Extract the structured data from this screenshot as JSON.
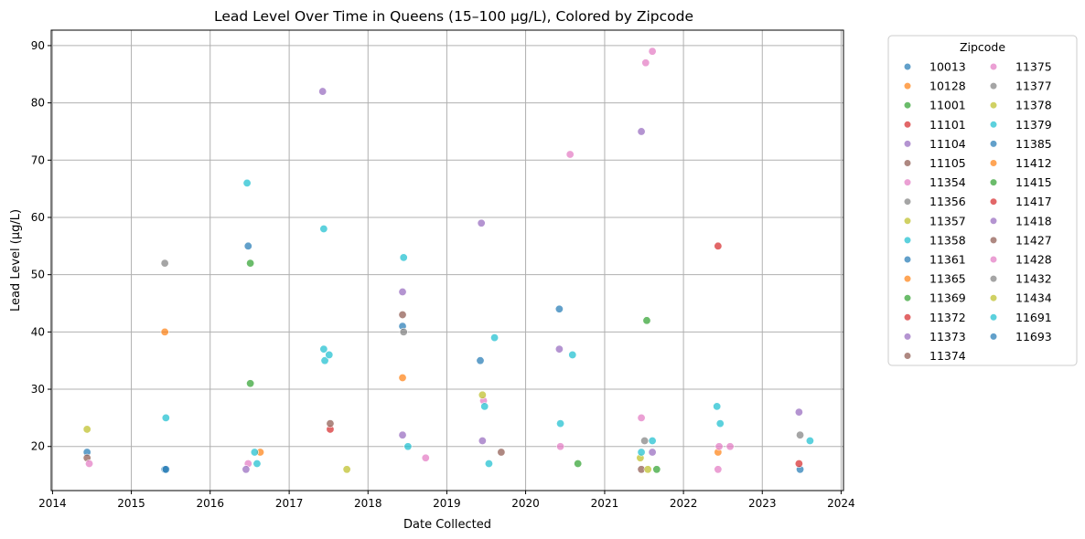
{
  "chart_data": {
    "type": "scatter",
    "title": "Lead Level Over Time in Queens (15–100 µg/L), Colored by Zipcode",
    "xlabel": "Date Collected",
    "ylabel": "Lead Level (µg/L)",
    "xlim": [
      "2013-12-26",
      "2024-01-12"
    ],
    "ylim": [
      12.3,
      92.7
    ],
    "xticks": [
      "2014",
      "2015",
      "2016",
      "2017",
      "2018",
      "2019",
      "2020",
      "2021",
      "2022",
      "2023",
      "2024"
    ],
    "yticks": [
      20,
      30,
      40,
      50,
      60,
      70,
      80,
      90
    ],
    "grid": true,
    "legend": {
      "title": "Zipcode",
      "placement": "outside-right",
      "columns": 2
    },
    "series": [
      {
        "name": "10013",
        "color": "#1f77b4",
        "points": [
          [
            "2014-06-10",
            19
          ],
          [
            "2015-06-05",
            16
          ],
          [
            "2016-06-25",
            55
          ],
          [
            "2018-06-10",
            41
          ],
          [
            "2019-06-05",
            35
          ],
          [
            "2020-06-05",
            44
          ],
          [
            "2023-06-25",
            16
          ]
        ]
      },
      {
        "name": "10128",
        "color": "#ff7f0e",
        "points": [
          [
            "2015-06-05",
            40
          ],
          [
            "2016-08-20",
            19
          ],
          [
            "2018-06-10",
            32
          ],
          [
            "2022-06-10",
            19
          ]
        ]
      },
      {
        "name": "11001",
        "color": "#2ca02c",
        "points": [
          [
            "2016-07-05",
            52
          ],
          [
            "2016-07-05",
            31
          ],
          [
            "2020-08-30",
            17
          ],
          [
            "2021-07-15",
            42
          ],
          [
            "2021-08-30",
            16
          ]
        ]
      },
      {
        "name": "11101",
        "color": "#d62728",
        "points": [
          [
            "2017-07-10",
            23
          ],
          [
            "2022-06-10",
            55
          ],
          [
            "2023-06-20",
            17
          ]
        ]
      },
      {
        "name": "11104",
        "color": "#9467bd",
        "points": [
          [
            "2017-06-05",
            82
          ],
          [
            "2018-06-10",
            47
          ],
          [
            "2018-06-10",
            22
          ],
          [
            "2019-06-10",
            59
          ],
          [
            "2019-06-15",
            21
          ],
          [
            "2020-06-05",
            37
          ],
          [
            "2021-06-20",
            75
          ],
          [
            "2021-08-10",
            19
          ],
          [
            "2023-06-20",
            26
          ]
        ]
      },
      {
        "name": "11105",
        "color": "#8c564b",
        "points": [
          [
            "2014-06-10",
            18
          ],
          [
            "2017-07-10",
            24
          ],
          [
            "2018-06-10",
            43
          ],
          [
            "2019-09-10",
            19
          ],
          [
            "2021-06-20",
            16
          ]
        ]
      },
      {
        "name": "11354",
        "color": "#e377c2",
        "points": [
          [
            "2014-06-20",
            17
          ],
          [
            "2016-06-25",
            17
          ],
          [
            "2019-06-20",
            28
          ],
          [
            "2020-06-10",
            20
          ],
          [
            "2020-07-25",
            71
          ],
          [
            "2021-06-20",
            25
          ],
          [
            "2021-07-10",
            87
          ],
          [
            "2021-08-10",
            89
          ],
          [
            "2022-06-10",
            16
          ]
        ]
      },
      {
        "name": "11356",
        "color": "#7f7f7f",
        "points": [
          [
            "2015-06-05",
            52
          ],
          [
            "2018-06-15",
            40
          ],
          [
            "2021-07-05",
            21
          ],
          [
            "2023-06-25",
            22
          ]
        ]
      },
      {
        "name": "11357",
        "color": "#bcbd22",
        "points": [
          [
            "2014-06-10",
            23
          ],
          [
            "2017-09-25",
            16
          ],
          [
            "2019-06-15",
            29
          ],
          [
            "2021-06-15",
            18
          ],
          [
            "2021-07-20",
            16
          ]
        ]
      },
      {
        "name": "11358",
        "color": "#17becf",
        "points": [
          [
            "2015-06-10",
            25
          ],
          [
            "2016-06-20",
            66
          ],
          [
            "2016-07-25",
            19
          ],
          [
            "2016-08-05",
            17
          ],
          [
            "2017-06-10",
            58
          ],
          [
            "2017-06-10",
            37
          ],
          [
            "2017-06-15",
            35
          ],
          [
            "2017-07-05",
            36
          ],
          [
            "2018-06-15",
            53
          ],
          [
            "2018-07-05",
            20
          ],
          [
            "2019-06-25",
            27
          ],
          [
            "2019-07-15",
            17
          ],
          [
            "2019-08-10",
            39
          ],
          [
            "2020-06-10",
            24
          ],
          [
            "2020-08-05",
            36
          ],
          [
            "2021-06-20",
            19
          ],
          [
            "2021-08-10",
            21
          ],
          [
            "2022-06-05",
            27
          ],
          [
            "2022-06-20",
            24
          ],
          [
            "2023-08-10",
            21
          ]
        ]
      },
      {
        "name": "11361",
        "color": "#1f77b4",
        "points": [
          [
            "2015-06-10",
            16
          ]
        ]
      },
      {
        "name": "11365",
        "color": "#ff7f0e",
        "points": []
      },
      {
        "name": "11369",
        "color": "#2ca02c",
        "points": []
      },
      {
        "name": "11372",
        "color": "#d62728",
        "points": []
      },
      {
        "name": "11373",
        "color": "#9467bd",
        "points": [
          [
            "2016-06-15",
            16
          ]
        ]
      },
      {
        "name": "11374",
        "color": "#8c564b",
        "points": []
      },
      {
        "name": "11375",
        "color": "#e377c2",
        "points": [
          [
            "2018-09-25",
            18
          ],
          [
            "2022-06-15",
            20
          ],
          [
            "2022-08-05",
            20
          ]
        ]
      },
      {
        "name": "11377",
        "color": "#7f7f7f",
        "points": []
      },
      {
        "name": "11378",
        "color": "#bcbd22",
        "points": []
      },
      {
        "name": "11379",
        "color": "#17becf",
        "points": []
      },
      {
        "name": "11385",
        "color": "#1f77b4",
        "points": []
      },
      {
        "name": "11412",
        "color": "#ff7f0e",
        "points": []
      },
      {
        "name": "11415",
        "color": "#2ca02c",
        "points": []
      },
      {
        "name": "11417",
        "color": "#d62728",
        "points": []
      },
      {
        "name": "11418",
        "color": "#9467bd",
        "points": []
      },
      {
        "name": "11427",
        "color": "#8c564b",
        "points": []
      },
      {
        "name": "11428",
        "color": "#e377c2",
        "points": []
      },
      {
        "name": "11432",
        "color": "#7f7f7f",
        "points": []
      },
      {
        "name": "11434",
        "color": "#bcbd22",
        "points": []
      },
      {
        "name": "11691",
        "color": "#17becf",
        "points": []
      },
      {
        "name": "11693",
        "color": "#1f77b4",
        "points": []
      }
    ]
  }
}
